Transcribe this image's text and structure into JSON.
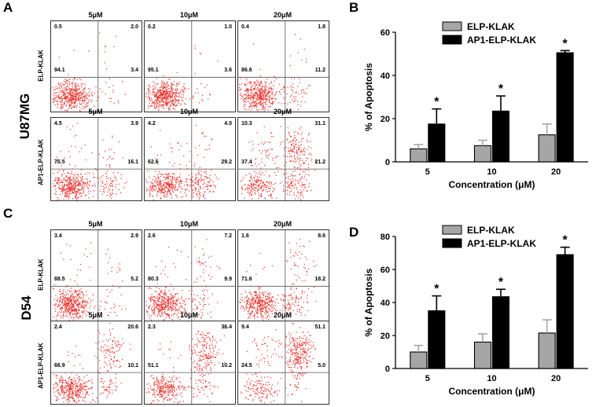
{
  "panel_letters": {
    "a": "A",
    "b": "B",
    "c": "C",
    "d": "D"
  },
  "cell_lines": {
    "top": "U87MG",
    "bottom": "D54"
  },
  "flow": {
    "row_labels": {
      "elp": "ELP-KLAK",
      "ap1": "AP1-ELP-KLAK"
    },
    "concentrations": [
      "5μM",
      "10μM",
      "20μM"
    ],
    "u87_elp": [
      [
        "0.5",
        "2.0",
        "94.1",
        "3.4"
      ],
      [
        "0.2",
        "1.0",
        "95.1",
        "3.6"
      ],
      [
        "0.4",
        "1.8",
        "86.6",
        "11.2"
      ]
    ],
    "u87_ap1": [
      [
        "4.5",
        "3.9",
        "75.5",
        "16.1"
      ],
      [
        "4.2",
        "4.0",
        "62.6",
        "29.2"
      ],
      [
        "10.3",
        "31.1",
        "37.4",
        "21.2"
      ]
    ],
    "d54_elp": [
      [
        "3.4",
        "2.9",
        "88.5",
        "5.2"
      ],
      [
        "2.6",
        "7.2",
        "80.3",
        "9.9"
      ],
      [
        "1.6",
        "8.6",
        "71.6",
        "18.2"
      ]
    ],
    "d54_ap1": [
      [
        "2.4",
        "20.6",
        "66.9",
        "10.1"
      ],
      [
        "2.3",
        "36.4",
        "51.1",
        "10.2"
      ],
      [
        "9.4",
        "51.1",
        "24.5",
        "5.0"
      ]
    ]
  },
  "chart_data": [
    {
      "type": "bar",
      "panel": "B",
      "categories": [
        "5",
        "10",
        "20"
      ],
      "series": [
        {
          "name": "ELP-KLAK",
          "values": [
            6,
            7.5,
            12.5
          ],
          "errors": [
            2,
            2.5,
            5
          ]
        },
        {
          "name": "AP1-ELP-KLAK",
          "values": [
            17.5,
            23.5,
            50.5
          ],
          "errors": [
            7,
            7,
            1
          ]
        }
      ],
      "significance": [
        "*",
        "*",
        "*"
      ],
      "xlabel": "Concentration (μM)",
      "ylabel": "% of Apoptosis",
      "ylim": [
        0,
        60
      ],
      "yticks": [
        "0",
        "20",
        "40",
        "60"
      ]
    },
    {
      "type": "bar",
      "panel": "D",
      "categories": [
        "5",
        "10",
        "20"
      ],
      "series": [
        {
          "name": "ELP-KLAK",
          "values": [
            10,
            16,
            21.5
          ],
          "errors": [
            4,
            5,
            8
          ]
        },
        {
          "name": "AP1-ELP-KLAK",
          "values": [
            35,
            43.5,
            69
          ],
          "errors": [
            9,
            4.5,
            4.5
          ]
        }
      ],
      "significance": [
        "*",
        "*",
        "*"
      ],
      "xlabel": "Concentration (μM)",
      "ylabel": "% of Apoptosis",
      "ylim": [
        0,
        80
      ],
      "yticks": [
        "0",
        "20",
        "40",
        "60",
        "80"
      ]
    }
  ],
  "colors": {
    "dots": "#e8302a",
    "elp_bar": "#a6a6a6",
    "ap1_bar": "#000000"
  }
}
